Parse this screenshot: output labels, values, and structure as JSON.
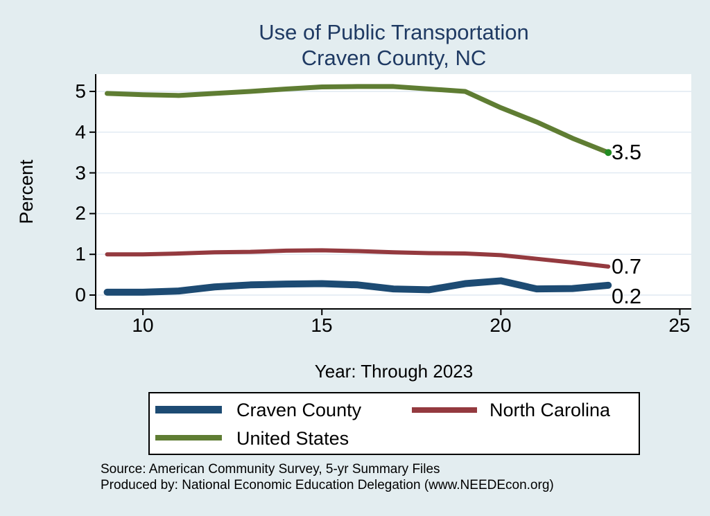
{
  "chart_data": {
    "type": "line",
    "title_lines": [
      "Use of Public Transportation",
      "Craven County, NC"
    ],
    "xlabel": "Year: Through 2023",
    "ylabel": "Percent",
    "x": [
      9,
      10,
      11,
      12,
      13,
      14,
      15,
      16,
      17,
      18,
      19,
      20,
      21,
      22,
      23
    ],
    "series": [
      {
        "name": "Craven County",
        "color": "#1d4b73",
        "line_width": 10,
        "values": [
          0.07,
          0.07,
          0.1,
          0.2,
          0.25,
          0.27,
          0.28,
          0.25,
          0.15,
          0.13,
          0.28,
          0.35,
          0.15,
          0.16,
          0.24
        ],
        "end_label": "0.2"
      },
      {
        "name": "North Carolina",
        "color": "#943a3f",
        "line_width": 6,
        "values": [
          1.0,
          1.0,
          1.02,
          1.05,
          1.06,
          1.09,
          1.1,
          1.08,
          1.05,
          1.03,
          1.02,
          0.98,
          0.89,
          0.8,
          0.7
        ],
        "end_label": "0.7"
      },
      {
        "name": "United States",
        "color": "#5f7d33",
        "line_width": 7,
        "values": [
          4.95,
          4.92,
          4.9,
          4.95,
          5.0,
          5.06,
          5.11,
          5.12,
          5.12,
          5.06,
          5.0,
          4.6,
          4.25,
          3.85,
          3.5
        ],
        "end_label": "3.5",
        "end_marker_color": "#228b22"
      }
    ],
    "xticks": [
      10,
      15,
      20,
      25
    ],
    "xtick_labels": [
      "10",
      "15",
      "20",
      "25"
    ],
    "yticks": [
      0,
      1,
      2,
      3,
      4,
      5
    ],
    "ytick_labels": [
      "0",
      "1",
      "2",
      "3",
      "4",
      "5"
    ],
    "xlim": [
      8.68,
      25.32
    ],
    "ylim": [
      -0.34,
      5.425
    ],
    "grid": "horizontal",
    "legend_position": "bottom",
    "colors": {
      "background": "#e3edf0",
      "plot_background": "#ffffff",
      "gridline": "#dfe9f2",
      "axis": "#000000",
      "title": "#1f3a63"
    }
  },
  "footer": {
    "line1": "Source: American Community Survey, 5-yr Summary Files",
    "line2": "Produced by: National Economic Education Delegation (www.NEEDEcon.org)"
  }
}
